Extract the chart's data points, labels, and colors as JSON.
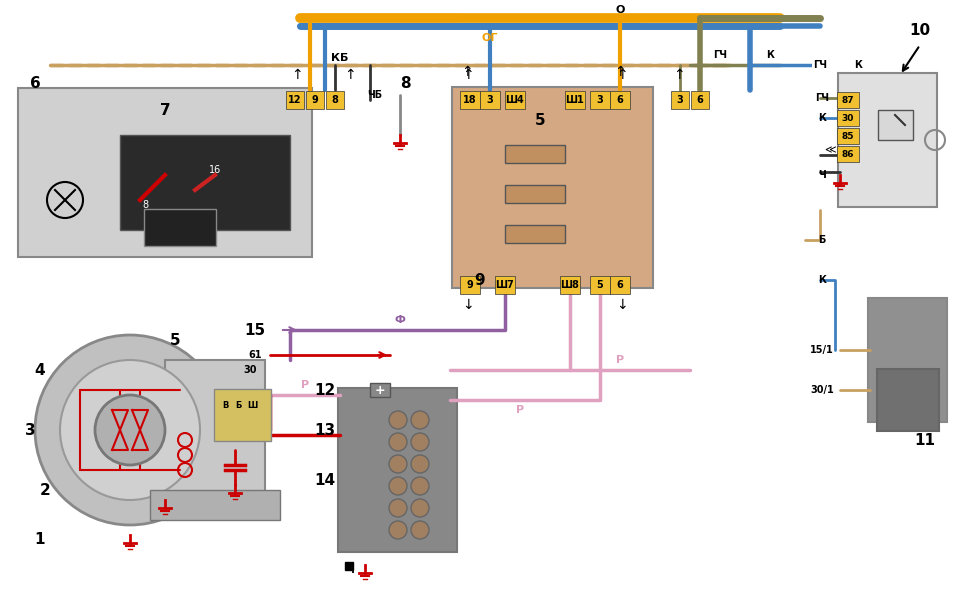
{
  "bg_color": "#ffffff",
  "title": "",
  "fig_w": 9.6,
  "fig_h": 6.14,
  "wire_colors": {
    "O": "#f0a000",
    "OG": "#f0a000",
    "KB": "#c8a060",
    "K": "#4040c0",
    "GCH": "#808040",
    "CH": "#404040",
    "CHB": "#404040",
    "F": "#9060a0",
    "R": "#e0a0c0",
    "red": "#cc0000",
    "blue": "#4080c0"
  },
  "labels": {
    "1": "1",
    "2": "2",
    "3": "3",
    "4": "4",
    "5": "5",
    "6": "6",
    "7": "7",
    "8": "8",
    "9": "9",
    "10": "10",
    "11": "11",
    "12": "12",
    "13": "13",
    "14": "14",
    "15": "15",
    "O": "О",
    "OG": "ОГ",
    "KB": "КБ",
    "CHB": "ЧБ",
    "K": "К",
    "GCH": "ГЧ",
    "CH": "Ч",
    "F": "Ф",
    "R": "Р",
    "B": "Б",
    "12t": "12",
    "9t": "9",
    "8t": "8",
    "18t": "18",
    "3t": "3",
    "sh4": "Ш4",
    "sh1": "Ш1",
    "sh7": "Ш7",
    "sh8": "Ш8",
    "3p": "3",
    "6p": "6",
    "9p": "9",
    "5p": "5",
    "6p2": "6",
    "87": "87",
    "30": "30",
    "85": "85",
    "86": "86",
    "15_1": "15/1",
    "30_1": "30/1",
    "61": "61",
    "30b": "30",
    "V": "В",
    "Bb": "Б",
    "Sh": "Ш"
  }
}
